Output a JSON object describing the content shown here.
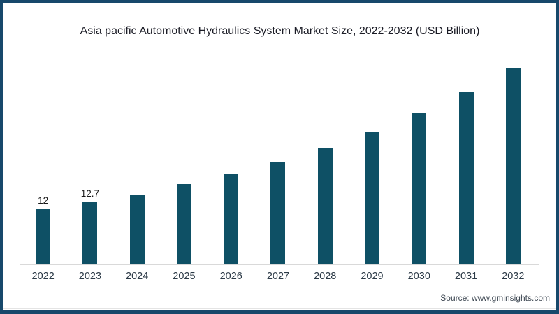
{
  "source": "Source: www.gminsights.com",
  "colors": {
    "background": "#ffffff",
    "frame_border": "#17486b",
    "bar": "#0e5065",
    "axis_line": "#d9d9d9",
    "hairline": "#e4e4e4",
    "title_text": "#1b1c26",
    "tick_text": "#2c3a47",
    "value_label_text": "#191919",
    "source_text": "#3d4752"
  },
  "chart_data": {
    "type": "bar",
    "title": "Asia pacific Automotive Hydraulics System Market Size, 2022-2032 (USD Billion)",
    "xlabel": "",
    "ylabel": "",
    "unit": "USD Billion",
    "categories": [
      "2022",
      "2023",
      "2024",
      "2025",
      "2026",
      "2027",
      "2028",
      "2029",
      "2030",
      "2031",
      "2032"
    ],
    "values": [
      12,
      12.7,
      13.5,
      14.6,
      15.6,
      16.8,
      18.2,
      19.8,
      21.7,
      23.8,
      26.2
    ],
    "visible_value_labels": [
      "12",
      "12.7",
      "",
      "",
      "",
      "",
      "",
      "",
      "",
      "",
      ""
    ],
    "grid": false,
    "legend": false,
    "y_axis_visible": false,
    "ylim": [
      6.4,
      28.2
    ]
  }
}
